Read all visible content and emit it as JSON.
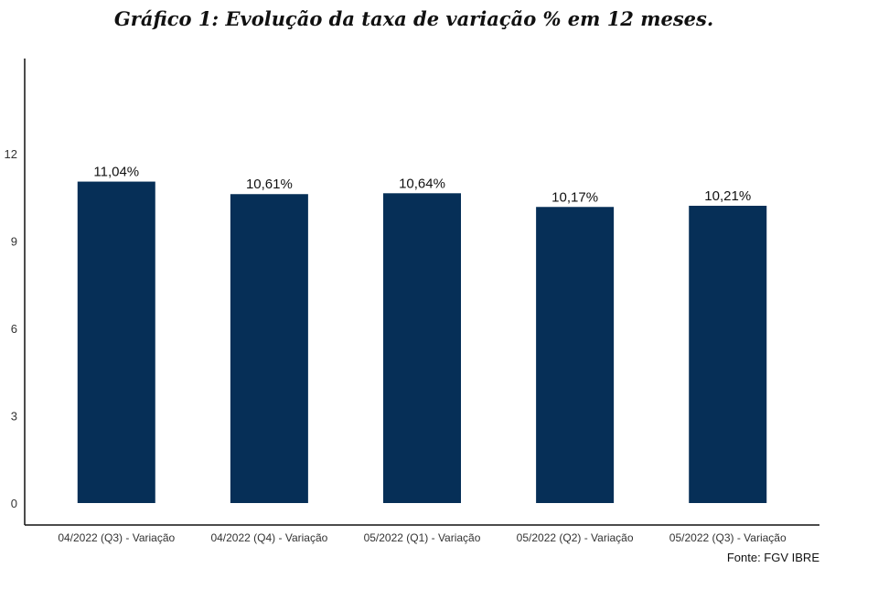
{
  "chart_data": {
    "type": "bar",
    "title": "Gráfico 1: Evolução da taxa de variação % em 12 meses.",
    "source": "Fonte: FGV IBRE",
    "categories": [
      "04/2022 (Q3) - Variação",
      "04/2022 (Q4) - Variação",
      "05/2022 (Q1) - Variação",
      "05/2022 (Q2) - Variação",
      "05/2022 (Q3) - Variação"
    ],
    "values": [
      11.04,
      10.61,
      10.64,
      10.17,
      10.21
    ],
    "data_labels": [
      "11,04%",
      "10,61%",
      "10,64%",
      "10,17%",
      "10,21%"
    ],
    "yticks": [
      0,
      3,
      6,
      9,
      12
    ],
    "ylim": [
      0,
      15.2
    ],
    "xlabel": "",
    "ylabel": "",
    "grid": false,
    "colors": {
      "bar": "#062F57",
      "axis": "#111111",
      "tick_text": "#333333"
    }
  }
}
